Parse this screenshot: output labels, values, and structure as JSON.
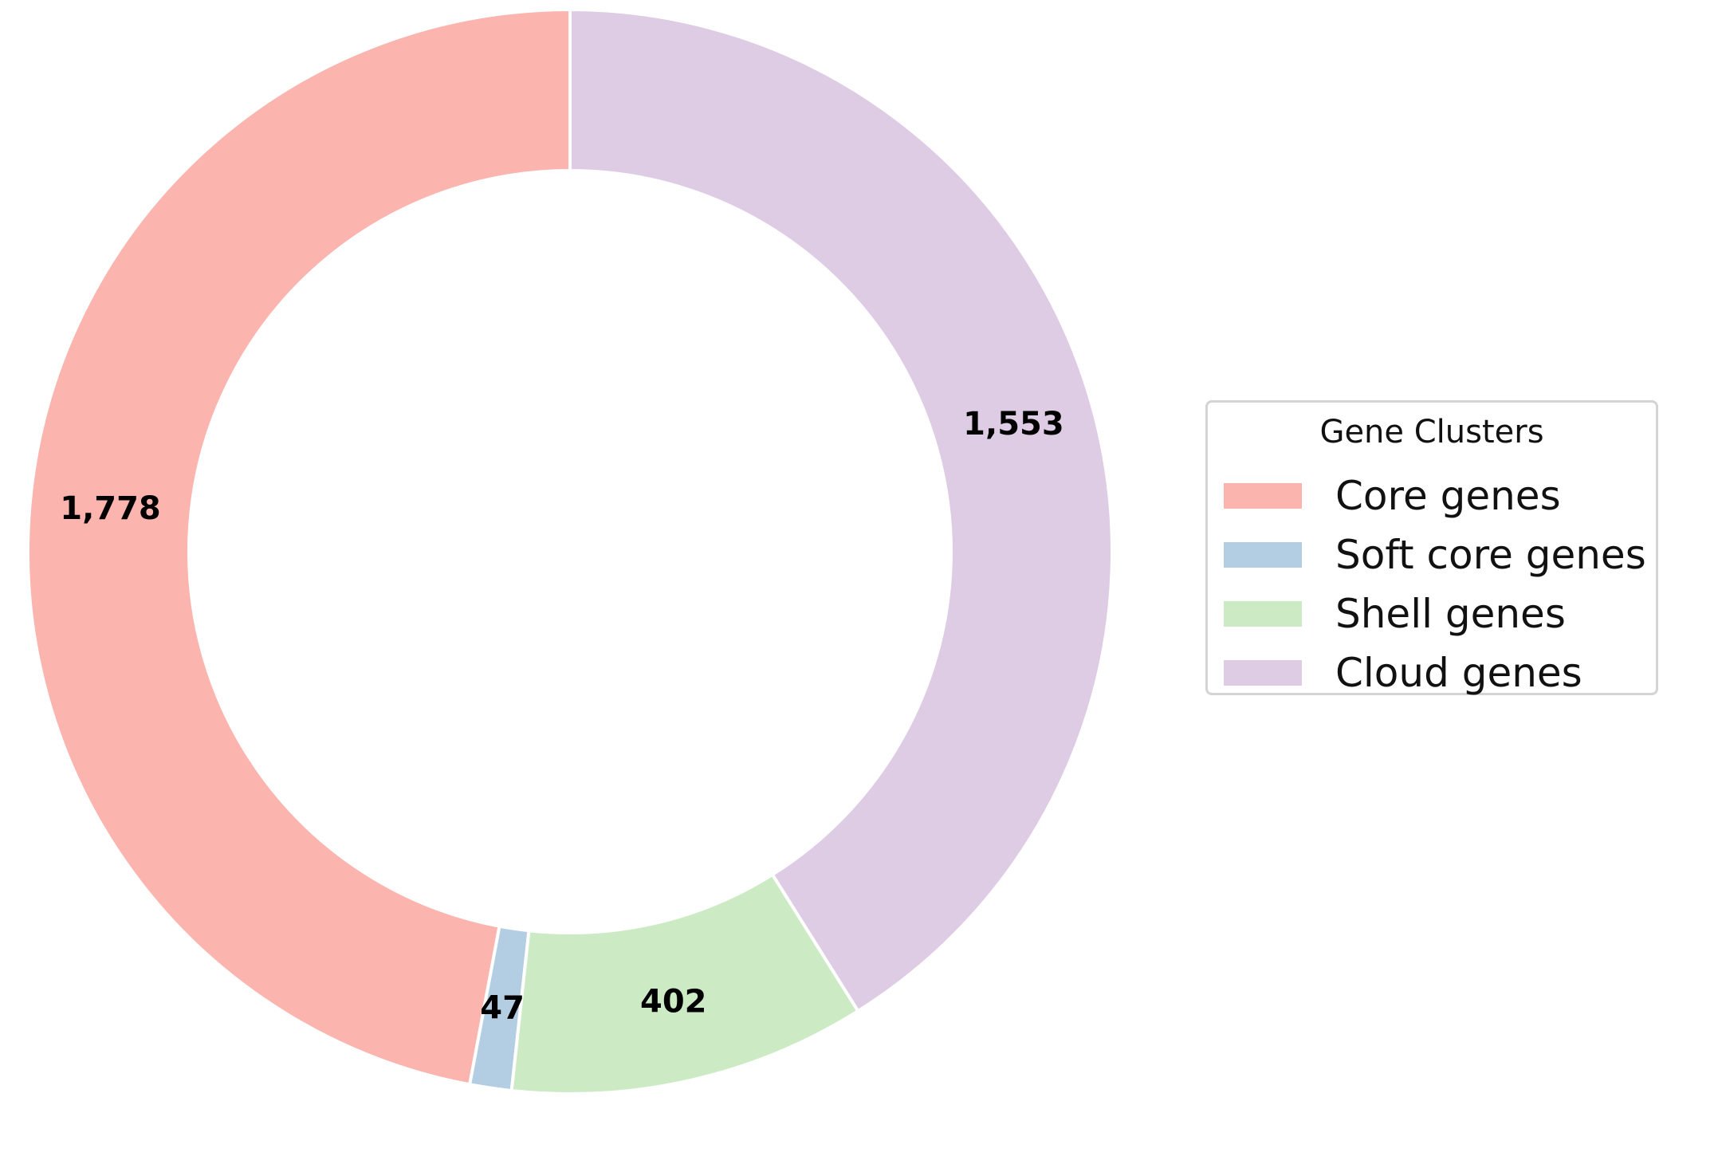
{
  "chart_data": {
    "type": "pie",
    "donut": true,
    "categories": [
      "Core genes",
      "Soft core genes",
      "Shell genes",
      "Cloud genes"
    ],
    "values": [
      1778,
      47,
      402,
      1553
    ],
    "value_labels": [
      "1,778",
      "47",
      "402",
      "1,553"
    ],
    "colors": [
      "#fbb4ae",
      "#b3cde3",
      "#ccebc5",
      "#decbe4"
    ],
    "direction": "counterclockwise",
    "start_angle_deg": 90,
    "legend": {
      "title": "Gene Clusters",
      "placement": "right"
    }
  }
}
